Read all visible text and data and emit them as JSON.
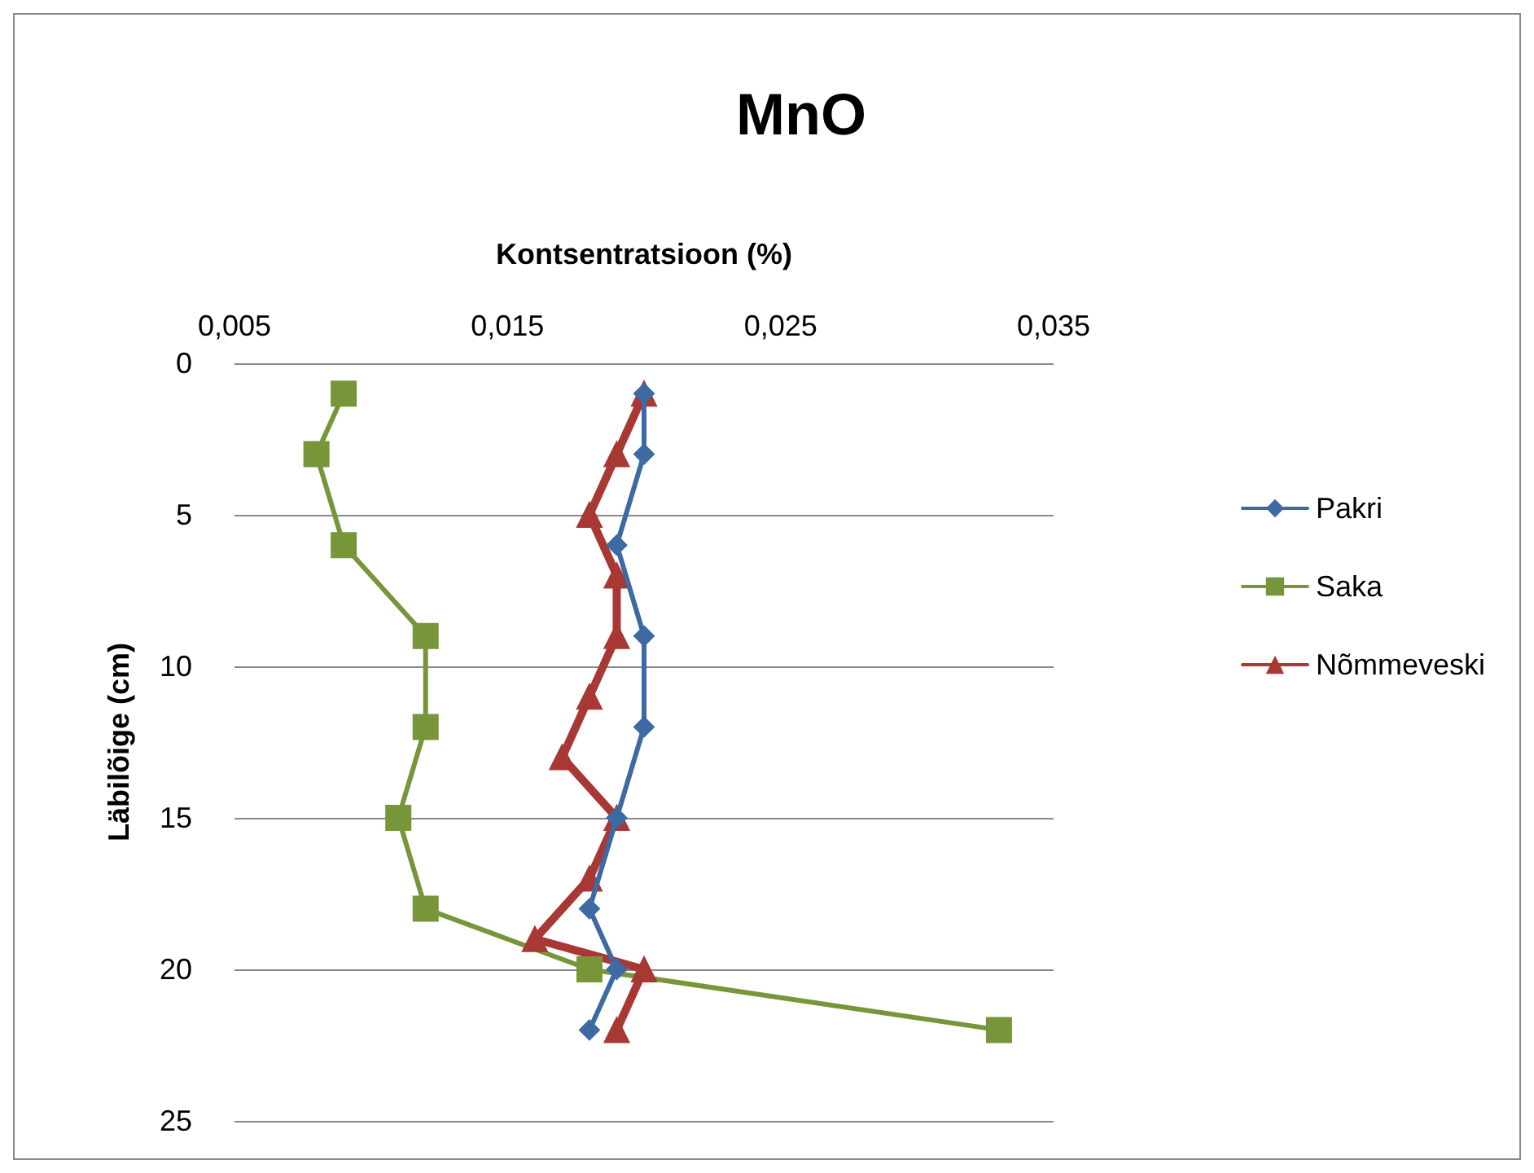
{
  "chart_data": {
    "type": "line",
    "title": "MnO",
    "xlabel": "Kontsentratsioon (%)",
    "ylabel": "Läbilõige (cm)",
    "orientation": "horizontal",
    "xlim": [
      0.005,
      0.035
    ],
    "xticks": [
      {
        "value": 0.005,
        "label": "0,005"
      },
      {
        "value": 0.015,
        "label": "0,015"
      },
      {
        "value": 0.025,
        "label": "0,025"
      },
      {
        "value": 0.035,
        "label": "0,035"
      }
    ],
    "ylim": [
      25,
      0
    ],
    "yticks": [
      0,
      5,
      10,
      15,
      20,
      25
    ],
    "grid": "y",
    "legend": "right",
    "line_style": "solid",
    "series": [
      {
        "name": "Pakri",
        "color": "#3d6aa3",
        "marker": "diamond",
        "x": [
          1,
          3,
          6,
          9,
          12,
          15,
          18,
          20,
          22
        ],
        "values": [
          0.02,
          0.02,
          0.019,
          0.02,
          0.02,
          0.019,
          0.018,
          0.019,
          0.018
        ]
      },
      {
        "name": "Saka",
        "color": "#77963a",
        "marker": "square",
        "x": [
          1,
          3,
          6,
          9,
          12,
          15,
          18,
          20,
          22
        ],
        "values": [
          0.009,
          0.008,
          0.009,
          0.012,
          0.012,
          0.011,
          0.012,
          0.018,
          0.033
        ]
      },
      {
        "name": "Nõmmeveski",
        "color": "#a83834",
        "marker": "triangle",
        "x": [
          1,
          3,
          5,
          7,
          9,
          11,
          13,
          15,
          17,
          19,
          20,
          22
        ],
        "values": [
          0.02,
          0.019,
          0.018,
          0.019,
          0.019,
          0.018,
          0.017,
          0.019,
          0.018,
          0.016,
          0.02,
          0.019
        ]
      }
    ]
  }
}
